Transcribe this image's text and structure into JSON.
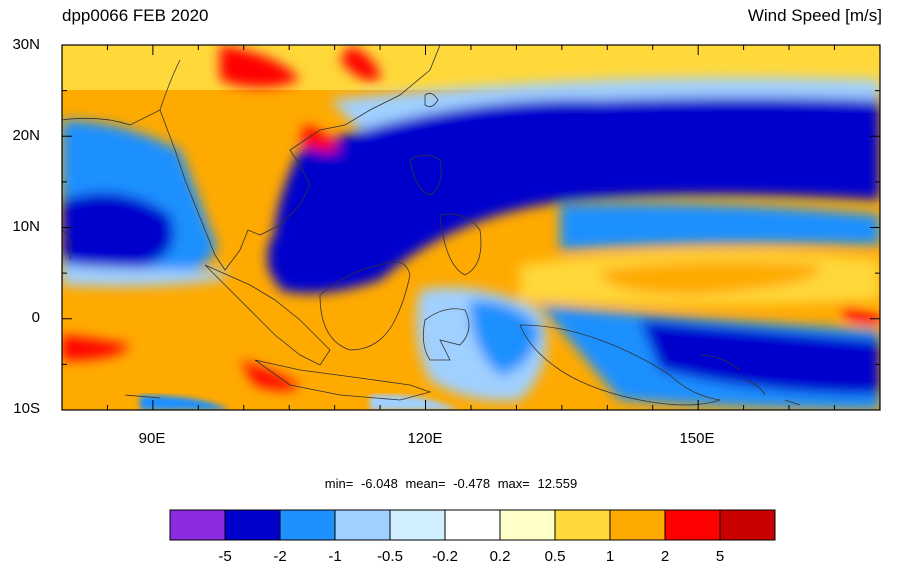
{
  "header": {
    "title_left": "dpp0066 FEB 2020",
    "title_right": "Wind Speed [m/s]"
  },
  "axes": {
    "lat_labels": [
      "30N",
      "20N",
      "10N",
      "0",
      "10S"
    ],
    "lon_labels": [
      "90E",
      "120E",
      "150E"
    ]
  },
  "stats": {
    "min_label": "min=",
    "min_value": "-6.048",
    "mean_label": "mean=",
    "mean_value": "-0.478",
    "max_label": "max=",
    "max_value": "12.559"
  },
  "colorbar": {
    "labels": [
      "-5",
      "-2",
      "-1",
      "-0.5",
      "-0.2",
      "0.2",
      "0.5",
      "1",
      "2",
      "5"
    ],
    "colors": [
      "#8a2be2",
      "#0000cd",
      "#1e90ff",
      "#a0d0ff",
      "#d0f0ff",
      "#ffffff",
      "#ffffc8",
      "#ffd83a",
      "#ffaa00",
      "#ff0000",
      "#c80000"
    ]
  },
  "map": {
    "ocean_deep": "#0000cd",
    "ocean_mid": "#1e90ff",
    "ocean_light": "#a0d0ff",
    "land_orange": "#ffaa00",
    "land_yellow": "#ffd83a",
    "red": "#ff0000"
  }
}
